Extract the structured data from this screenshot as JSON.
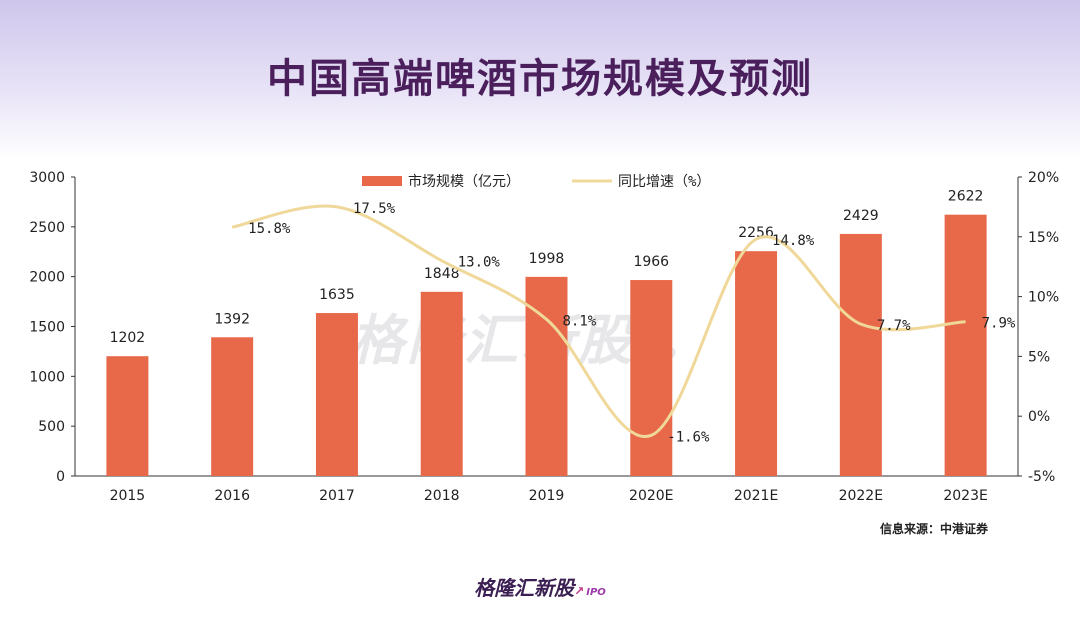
{
  "title": "中国高端啤酒市场规模及预测",
  "source": "信息来源：中港证券",
  "brand": {
    "name": "格隆汇新股",
    "ipo": "IPO",
    "arrow": "↗"
  },
  "watermark": {
    "name": "格隆汇新股",
    "ipo": "IPO"
  },
  "colors": {
    "bar": "#e8694a",
    "line": "#efd899",
    "axis": "#333333"
  },
  "chart_data": {
    "type": "bar+line",
    "categories": [
      "2015",
      "2016",
      "2017",
      "2018",
      "2019",
      "2020E",
      "2021E",
      "2022E",
      "2023E"
    ],
    "series": [
      {
        "name": "市场规模（亿元）",
        "type": "bar",
        "axis": "left",
        "values": [
          1202,
          1392,
          1635,
          1848,
          1998,
          1966,
          2256,
          2429,
          2622
        ]
      },
      {
        "name": "同比增速（%）",
        "type": "line",
        "axis": "right",
        "values": [
          null,
          15.8,
          17.5,
          13.0,
          8.1,
          -1.6,
          14.8,
          7.7,
          7.9
        ],
        "labels": [
          null,
          "15.8%",
          "17.5%",
          "13.0%",
          "8.1%",
          "-1.6%",
          "14.8%",
          "7.7%",
          "7.9%"
        ]
      }
    ],
    "y_left": {
      "min": 0,
      "max": 3000,
      "ticks": [
        0,
        500,
        1000,
        1500,
        2000,
        2500,
        3000
      ]
    },
    "y_right": {
      "min": -5,
      "max": 20,
      "ticks": [
        "-5%",
        "0%",
        "5%",
        "10%",
        "15%",
        "20%"
      ]
    },
    "legend_position": "top-center",
    "grid": false
  }
}
